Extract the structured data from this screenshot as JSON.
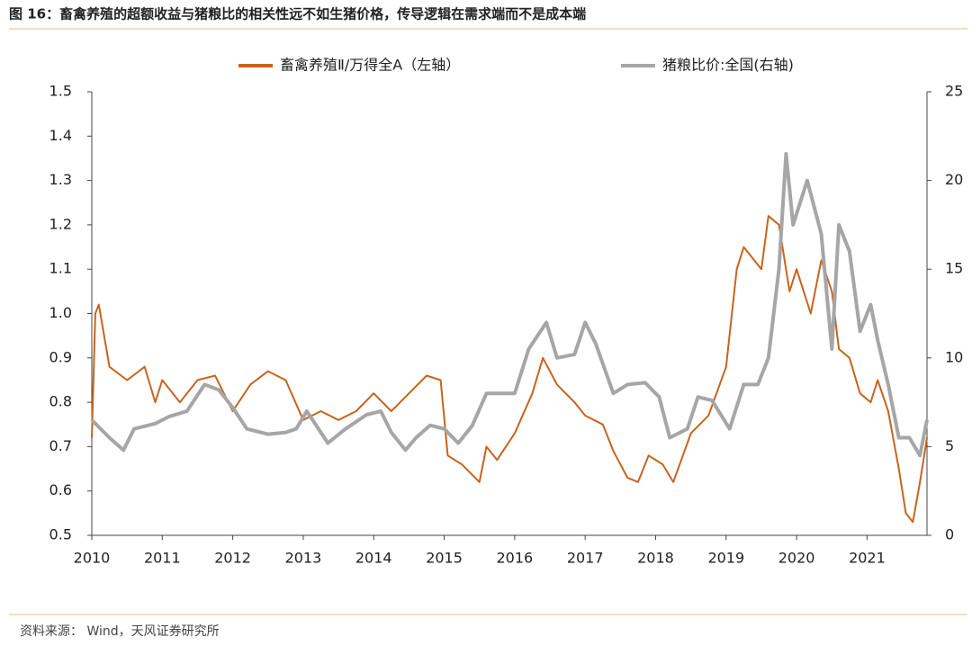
{
  "chart_data": {
    "type": "line",
    "title": "图 16：畜禽养殖的超额收益与猪粮比的相关性远不如生猪价格，传导逻辑在需求端而不是成本端",
    "source": "资料来源： Wind，天风证券研究所",
    "xlim": [
      2010,
      2021.85
    ],
    "xticks": [
      2010,
      2011,
      2012,
      2013,
      2014,
      2015,
      2016,
      2017,
      2018,
      2019,
      2020,
      2021
    ],
    "ylim": [
      0.5,
      1.5
    ],
    "yticks": [
      0.5,
      0.6,
      0.7,
      0.8,
      0.9,
      {
        "value": 1,
        "label": "1.0"
      },
      1.1,
      1.2,
      1.3,
      1.4,
      1.5
    ],
    "y2lim": [
      0,
      25
    ],
    "y2ticks": [
      0,
      5,
      10,
      15,
      20,
      25
    ],
    "grid": false,
    "legend": "top",
    "series": [
      {
        "name": "畜禽养殖Ⅱ/万得全A（左轴）",
        "color": "#c8641e",
        "axis": "y",
        "x": [
          2010.0,
          2010.05,
          2010.1,
          2010.25,
          2010.5,
          2010.75,
          2010.9,
          2011.0,
          2011.25,
          2011.5,
          2011.75,
          2012.0,
          2012.25,
          2012.5,
          2012.75,
          2013.0,
          2013.25,
          2013.5,
          2013.75,
          2014.0,
          2014.25,
          2014.5,
          2014.75,
          2014.95,
          2015.05,
          2015.25,
          2015.5,
          2015.6,
          2015.75,
          2016.0,
          2016.25,
          2016.4,
          2016.6,
          2016.85,
          2017.0,
          2017.25,
          2017.4,
          2017.6,
          2017.75,
          2017.9,
          2018.1,
          2018.25,
          2018.5,
          2018.75,
          2019.0,
          2019.15,
          2019.25,
          2019.5,
          2019.6,
          2019.75,
          2019.9,
          2020.0,
          2020.2,
          2020.35,
          2020.5,
          2020.6,
          2020.75,
          2020.9,
          2021.05,
          2021.15,
          2021.3,
          2021.45,
          2021.55,
          2021.65,
          2021.75,
          2021.85
        ],
        "values": [
          0.72,
          1.0,
          1.02,
          0.88,
          0.85,
          0.88,
          0.8,
          0.85,
          0.8,
          0.85,
          0.86,
          0.78,
          0.84,
          0.87,
          0.85,
          0.76,
          0.78,
          0.76,
          0.78,
          0.82,
          0.78,
          0.82,
          0.86,
          0.85,
          0.68,
          0.66,
          0.62,
          0.7,
          0.67,
          0.73,
          0.82,
          0.9,
          0.84,
          0.8,
          0.77,
          0.75,
          0.69,
          0.63,
          0.62,
          0.68,
          0.66,
          0.62,
          0.73,
          0.77,
          0.88,
          1.1,
          1.15,
          1.1,
          1.22,
          1.2,
          1.05,
          1.1,
          1.0,
          1.12,
          1.05,
          0.92,
          0.9,
          0.82,
          0.8,
          0.85,
          0.78,
          0.65,
          0.55,
          0.53,
          0.62,
          0.72
        ]
      },
      {
        "name": "猪粮比价:全国(右轴)",
        "color": "#a6a6a6",
        "axis": "y2",
        "x": [
          2010.0,
          2010.25,
          2010.45,
          2010.6,
          2010.9,
          2011.1,
          2011.35,
          2011.6,
          2011.8,
          2012.0,
          2012.2,
          2012.5,
          2012.75,
          2012.9,
          2013.05,
          2013.35,
          2013.6,
          2013.9,
          2014.1,
          2014.25,
          2014.45,
          2014.6,
          2014.8,
          2015.0,
          2015.2,
          2015.4,
          2015.6,
          2015.8,
          2016.0,
          2016.2,
          2016.45,
          2016.6,
          2016.85,
          2017.0,
          2017.15,
          2017.4,
          2017.6,
          2017.85,
          2018.05,
          2018.2,
          2018.45,
          2018.6,
          2018.8,
          2019.05,
          2019.25,
          2019.45,
          2019.6,
          2019.75,
          2019.85,
          2019.95,
          2020.15,
          2020.35,
          2020.5,
          2020.6,
          2020.75,
          2020.9,
          2021.05,
          2021.15,
          2021.3,
          2021.45,
          2021.6,
          2021.75,
          2021.85
        ],
        "values": [
          6.5,
          5.5,
          4.8,
          6.0,
          6.3,
          6.7,
          7.0,
          8.5,
          8.2,
          7.2,
          6.0,
          5.7,
          5.8,
          6.0,
          7.0,
          5.2,
          6.0,
          6.8,
          7.0,
          5.8,
          4.8,
          5.5,
          6.2,
          6.0,
          5.2,
          6.2,
          8.0,
          8.0,
          8.0,
          10.5,
          12.0,
          10.0,
          10.2,
          12.0,
          10.8,
          8.0,
          8.5,
          8.6,
          7.8,
          5.5,
          6.0,
          7.8,
          7.6,
          6.0,
          8.5,
          8.5,
          10.0,
          15.0,
          21.5,
          17.5,
          20.0,
          17.0,
          10.5,
          17.5,
          16.0,
          11.5,
          13.0,
          11.0,
          8.5,
          5.5,
          5.5,
          4.5,
          6.5
        ]
      }
    ]
  }
}
